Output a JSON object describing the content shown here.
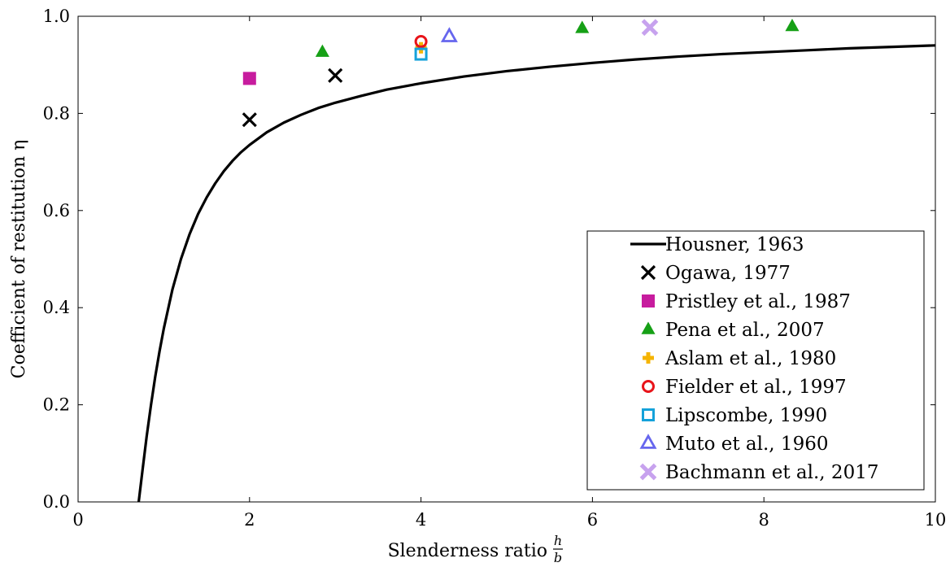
{
  "chart_data": {
    "type": "scatter",
    "title": "",
    "xlabel": "Slenderness ratio",
    "xlabel_fraction": {
      "numerator": "h",
      "denominator": "b"
    },
    "ylabel": "Coefficient of restitution η",
    "xlim": [
      0,
      10
    ],
    "ylim": [
      0,
      1.0
    ],
    "xticks": [
      "0",
      "2",
      "4",
      "6",
      "8",
      "10"
    ],
    "yticks": [
      "0.0",
      "0.2",
      "0.4",
      "0.6",
      "0.8",
      "1.0"
    ],
    "grid": false,
    "legend_position": "lower-right",
    "series": [
      {
        "name": "Housner, 1963",
        "kind": "line",
        "marker": "line",
        "color": "#000000",
        "x": [
          0.707,
          0.75,
          0.8,
          0.85,
          0.9,
          0.95,
          1.0,
          1.1,
          1.2,
          1.3,
          1.4,
          1.5,
          1.6,
          1.7,
          1.8,
          1.9,
          2.0,
          2.2,
          2.4,
          2.6,
          2.8,
          3.0,
          3.3,
          3.6,
          4.0,
          4.5,
          5.0,
          5.5,
          6.0,
          6.5,
          7.0,
          7.5,
          8.0,
          8.5,
          9.0,
          9.5,
          10.0
        ],
        "y": [
          0.0,
          0.063,
          0.135,
          0.199,
          0.258,
          0.31,
          0.357,
          0.437,
          0.5,
          0.551,
          0.593,
          0.627,
          0.656,
          0.681,
          0.702,
          0.72,
          0.735,
          0.761,
          0.781,
          0.797,
          0.811,
          0.822,
          0.836,
          0.849,
          0.862,
          0.876,
          0.887,
          0.896,
          0.904,
          0.911,
          0.917,
          0.922,
          0.926,
          0.93,
          0.934,
          0.937,
          0.94
        ]
      },
      {
        "name": "Ogawa, 1977",
        "marker": "x",
        "color": "#000000",
        "x": [
          2,
          3
        ],
        "y": [
          0.787,
          0.878
        ]
      },
      {
        "name": "Pristley et al., 1987",
        "marker": "square-filled",
        "color": "#C71C9E",
        "x": [
          2
        ],
        "y": [
          0.872
        ]
      },
      {
        "name": "Pena et al., 2007",
        "marker": "triangle-filled",
        "color": "#16A016",
        "x": [
          2.85,
          5.88,
          8.33
        ],
        "y": [
          0.926,
          0.975,
          0.979
        ]
      },
      {
        "name": "Aslam et al., 1980",
        "marker": "plus-filled",
        "color": "#F5B400",
        "x": [
          4
        ],
        "y": [
          0.935
        ]
      },
      {
        "name": "Fielder et al., 1997",
        "marker": "circle-open",
        "color": "#E8141A",
        "x": [
          4
        ],
        "y": [
          0.948
        ]
      },
      {
        "name": "Lipscombe, 1990",
        "marker": "square-open",
        "color": "#15A2DA",
        "x": [
          4
        ],
        "y": [
          0.922
        ]
      },
      {
        "name": "Muto et al., 1960",
        "marker": "triangle-open",
        "color": "#6666EE",
        "x": [
          4.33
        ],
        "y": [
          0.958
        ]
      },
      {
        "name": "Bachmann et al., 2017",
        "marker": "x-thick",
        "color": "#C7A2EE",
        "x": [
          6.67
        ],
        "y": [
          0.977
        ]
      }
    ]
  }
}
